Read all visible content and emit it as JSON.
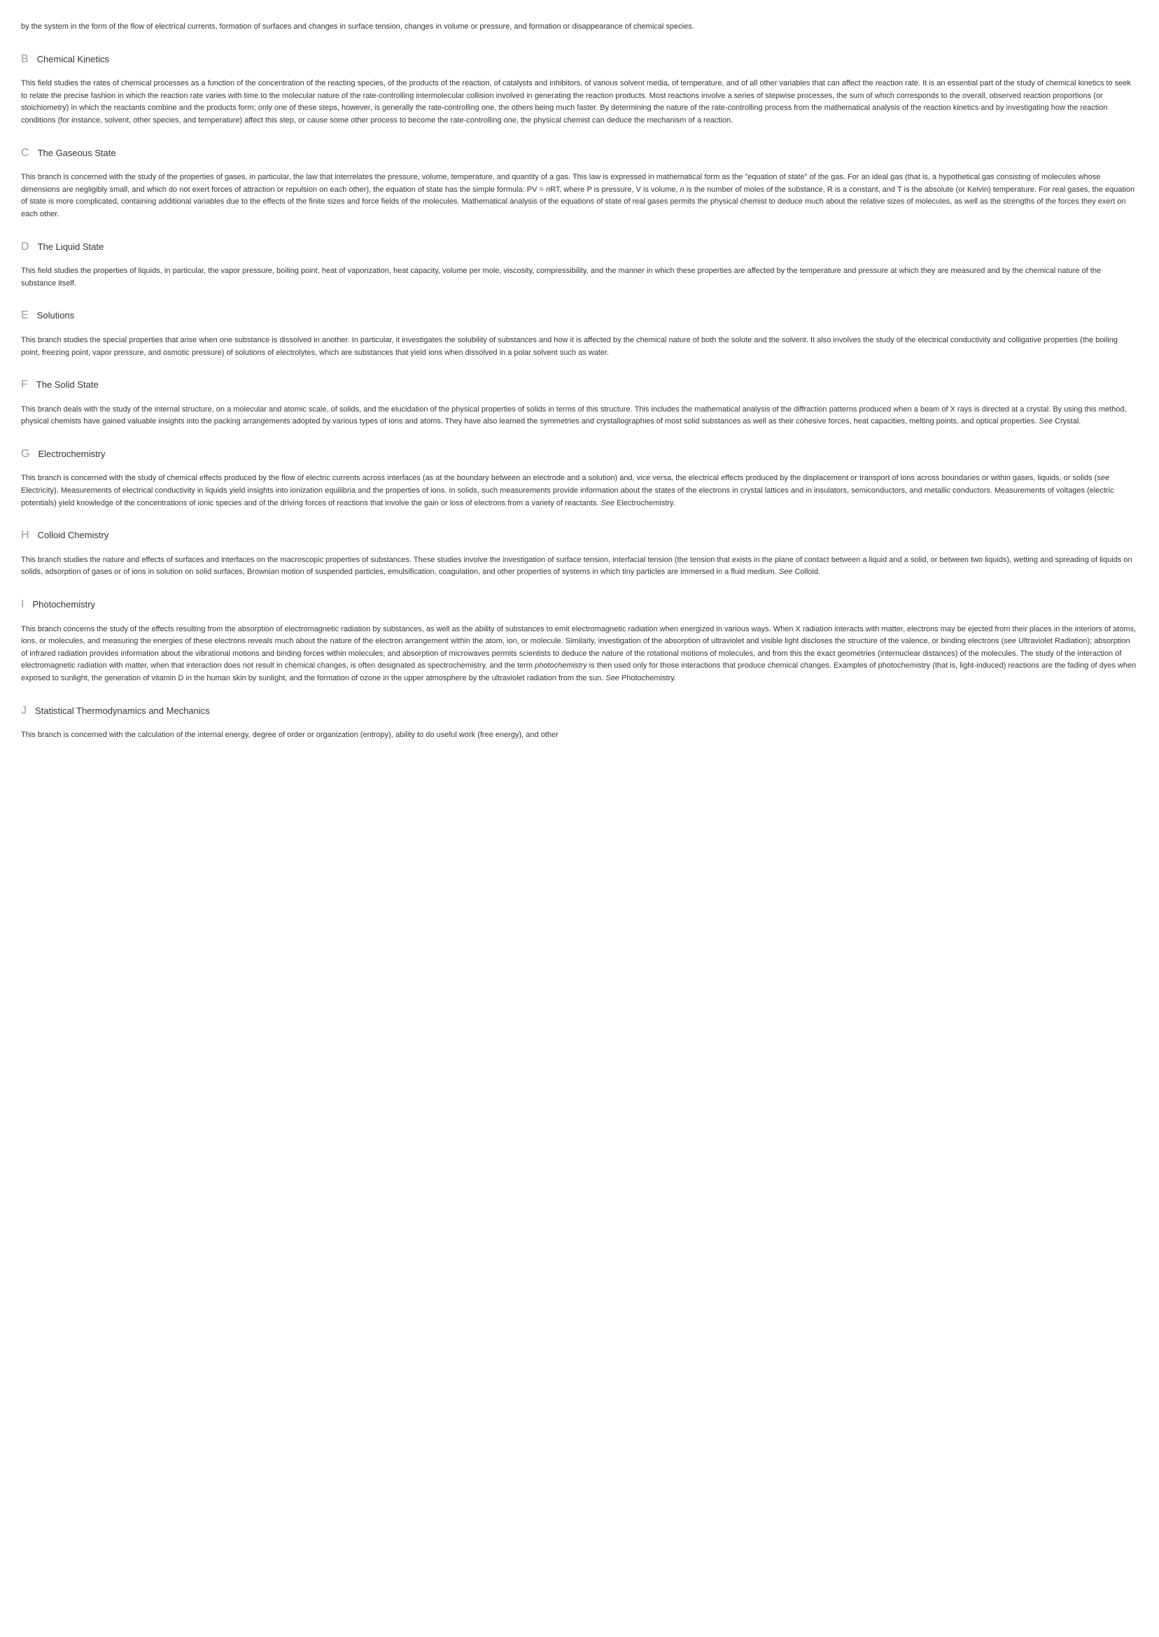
{
  "intro_paragraph": "by the system in the form of the flow of electrical currents, formation of surfaces and changes in surface tension, changes in volume or pressure, and formation or disappearance of chemical species.",
  "sections": {
    "B": {
      "letter": "B",
      "title": "Chemical Kinetics",
      "body": "This field studies the rates of chemical processes as a function of the concentration of the reacting species, of the products of the reaction, of catalysts and inhibitors, of various solvent media, of temperature, and of all other variables that can affect the reaction rate. It is an essential part of the study of chemical kinetics to seek to relate the precise fashion in which the reaction rate varies with time to the molecular nature of the rate-controlling intermolecular collision involved in generating the reaction products. Most reactions involve a series of stepwise processes, the sum of which corresponds to the overall, observed reaction proportions (or stoichiometry) in which the reactants combine and the products form; only one of these steps, however, is generally the rate-controlling one, the others being much faster. By determining the nature of the rate-controlling process from the mathematical analysis of the reaction kinetics and by investigating how the reaction conditions (for instance, solvent, other species, and temperature) affect this step, or cause some other process to become the rate-controlling one, the physical chemist can deduce the mechanism of a reaction."
    },
    "C": {
      "letter": "C",
      "title": "The Gaseous State",
      "body_pre": "This branch is concerned with the study of the properties of gases, in particular, the law that interrelates the pressure, volume, temperature, and quantity of a gas. This law is expressed in mathematical form as the \"equation of state\" of the gas. For an ideal gas (that is, a hypothetical gas consisting of molecules whose dimensions are negligibly small, and which do not exert forces of attraction or repulsion on each other), the equation of state has the simple formula: PV = ",
      "body_n": "n",
      "body_mid": "RT, where P is pressure, V is volume, ",
      "body_n2": "n",
      "body_post": " is the number of moles of the substance, R is a constant, and T is the absolute (or Kelvin) temperature. For real gases, the equation of state is more complicated, containing additional variables due to the effects of the finite sizes and force fields of the molecules. Mathematical analysis of the equations of state of real gases permits the physical chemist to deduce much about the relative sizes of molecules, as well as the strengths of the forces they exert on each other."
    },
    "D": {
      "letter": "D",
      "title": "The Liquid State",
      "body": "This field studies the properties of liquids, in particular, the vapor pressure, boiling point, heat of vaporization, heat capacity, volume per mole, viscosity, compressibility, and the manner in which these properties are affected by the temperature and pressure at which they are measured and by the chemical nature of the substance itself."
    },
    "E": {
      "letter": "E",
      "title": "Solutions",
      "body": "This branch studies the special properties that arise when one substance is dissolved in another. In particular, it investigates the solubility of substances and how it is affected by the chemical nature of both the solute and the solvent. It also involves the study of the electrical conductivity and colligative properties (the boiling point, freezing point, vapor pressure, and osmotic pressure) of solutions of electrolytes, which are substances that yield ions when dissolved in a polar solvent such as water."
    },
    "F": {
      "letter": "F",
      "title": "The Solid State",
      "body_pre": "This branch deals with the study of the internal structure, on a molecular and atomic scale, of solids, and the elucidation of the physical properties of solids in terms of this structure. This includes the mathematical analysis of the diffraction patterns produced when a beam of X rays is directed at a crystal. By using this method, physical chemists have gained valuable insights into the packing arrangements adopted by various types of ions and atoms. They have also learned the symmetries and crystallographies of most solid substances as well as their cohesive forces, heat capacities, melting points, and optical properties. ",
      "see": "See",
      "body_post": " Crystal."
    },
    "G": {
      "letter": "G",
      "title": "Electrochemistry",
      "body_pre": "This branch is concerned with the study of chemical effects produced by the flow of electric currents across interfaces (as at the boundary between an electrode and a solution) and, vice versa, the electrical effects produced by the displacement or transport of ions across boundaries or within gases, liquids, or solids (",
      "see1": "see",
      "body_mid": " Electricity). Measurements of electrical conductivity in liquids yield insights into ionization equilibria and the properties of ions. In solids, such measurements provide information about the states of the electrons in crystal lattices and in insulators, semiconductors, and metallic conductors. Measurements of voltages (electric potentials) yield knowledge of the concentrations of ionic species and of the driving forces of reactions that involve the gain or loss of electrons from a variety of reactants. ",
      "see2": "See",
      "body_post": " Electrochemistry."
    },
    "H": {
      "letter": "H",
      "title": "Colloid Chemistry",
      "body_pre": "This branch studies the nature and effects of surfaces and interfaces on the macroscopic properties of substances. These studies involve the investigation of surface tension, interfacial tension (the tension that exists in the plane of contact between a liquid and a solid, or between two liquids), wetting and spreading of liquids on solids, adsorption of gases or of ions in solution on solid surfaces, Brownian motion of suspended particles, emulsification, coagulation, and other properties of systems in which tiny particles are immersed in a fluid medium. ",
      "see": "See",
      "body_post": " Colloid."
    },
    "I": {
      "letter": "I",
      "title": "Photochemistry",
      "body_pre": "This branch concerns the study of the effects resulting from the absorption of electromagnetic radiation by substances, as well as the ability of substances to emit electromagnetic radiation when energized in various ways. When X radiation interacts with matter, electrons may be ejected from their places in the interiors of atoms, ions, or molecules, and measuring the energies of these electrons reveals much about the nature of the electron arrangement within the atom, ion, or molecule. Similarly, investigation of the absorption of ultraviolet and visible light discloses the structure of the valence, or binding electrons (",
      "see1": "see",
      "body_mid1": " Ultraviolet Radiation); absorption of infrared radiation provides information about the vibrational motions and binding forces within molecules; and absorption of microwaves permits scientists to deduce the nature of the rotational motions of molecules, and from this the exact geometries (internuclear distances) of the molecules. The study of the interaction of electromagnetic radiation with matter, when that interaction does not result in chemical changes, is often designated as spectrochemistry, and the term ",
      "photochem": "photochemistry",
      "body_mid2": " is then used only for those interactions that produce chemical changes. Examples of photochemistry (that is, light-induced) reactions are the fading of dyes when exposed to sunlight, the generation of vitamin D in the human skin by sunlight, and the formation of ozone in the upper atmosphere by the ultraviolet radiation from the sun. ",
      "see2": "See",
      "body_post": " Photochemistry."
    },
    "J": {
      "letter": "J",
      "title": "Statistical Thermodynamics and Mechanics",
      "body": "This branch is concerned with the calculation of the internal energy, degree of order or organization (entropy), ability to do useful work (free energy), and other"
    }
  }
}
